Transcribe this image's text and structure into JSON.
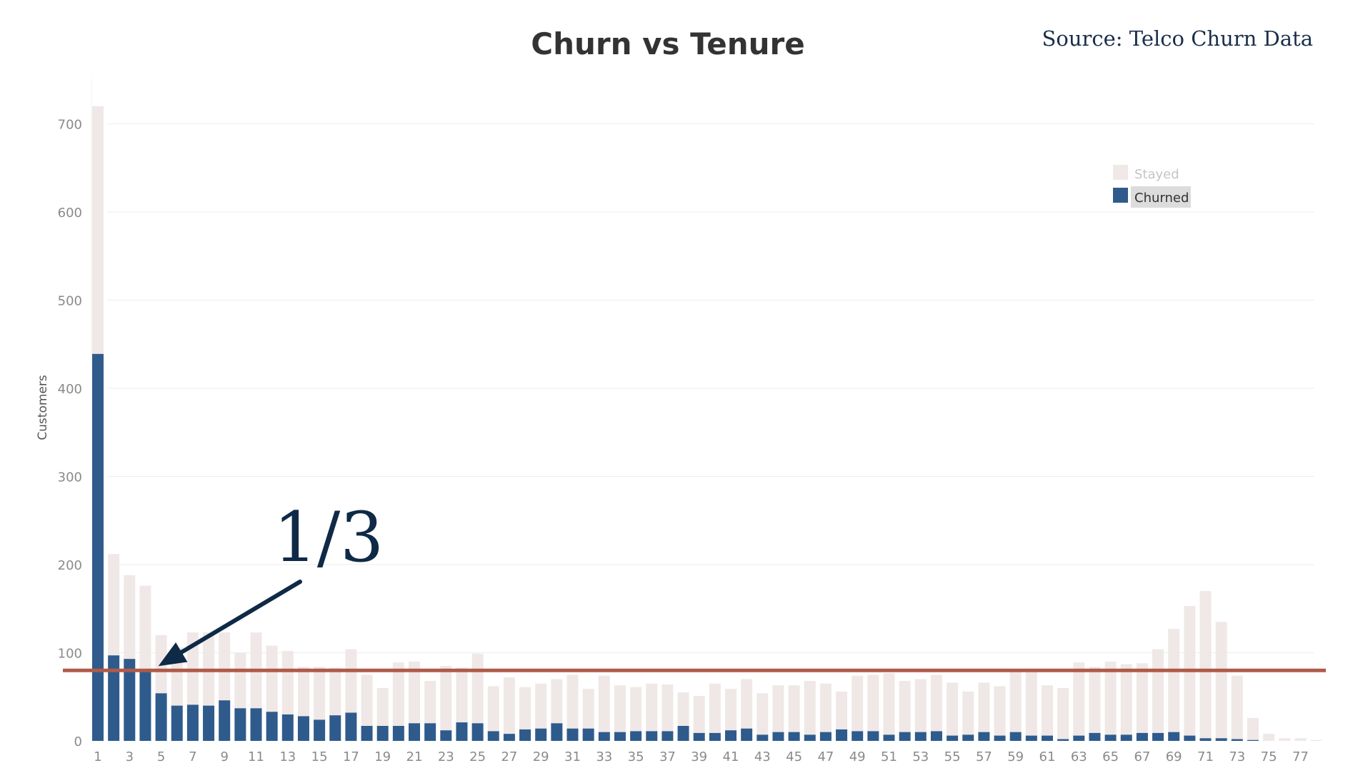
{
  "chart_data": {
    "type": "bar",
    "stacked": true,
    "title": "Churn vs Tenure",
    "source": "Source: Telco Churn Data",
    "xlabel": "",
    "ylabel": "Customers",
    "ylim": [
      0,
      720
    ],
    "yticks": [
      0,
      100,
      200,
      300,
      400,
      500,
      600,
      700
    ],
    "categories": [
      1,
      2,
      3,
      4,
      5,
      6,
      7,
      8,
      9,
      10,
      11,
      12,
      13,
      14,
      15,
      16,
      17,
      18,
      19,
      20,
      21,
      22,
      23,
      24,
      25,
      26,
      27,
      28,
      29,
      30,
      31,
      32,
      33,
      34,
      35,
      36,
      37,
      38,
      39,
      40,
      41,
      42,
      43,
      44,
      45,
      46,
      47,
      48,
      49,
      50,
      51,
      52,
      53,
      54,
      55,
      56,
      57,
      58,
      59,
      60,
      61,
      62,
      63,
      64,
      65,
      66,
      67,
      68,
      69,
      70,
      71,
      72,
      73,
      74,
      75,
      76,
      77,
      78
    ],
    "xtick_labels": [
      "1",
      "3",
      "5",
      "7",
      "9",
      "11",
      "13",
      "15",
      "17",
      "19",
      "21",
      "23",
      "25",
      "27",
      "29",
      "31",
      "33",
      "35",
      "37",
      "39",
      "41",
      "43",
      "45",
      "47",
      "49",
      "51",
      "53",
      "55",
      "57",
      "59",
      "61",
      "63",
      "65",
      "67",
      "69",
      "71",
      "73",
      "75",
      "77"
    ],
    "series": [
      {
        "name": "Churned",
        "color": "#2f5b8c",
        "values": [
          439,
          97,
          93,
          81,
          54,
          40,
          41,
          40,
          46,
          37,
          37,
          33,
          30,
          28,
          24,
          29,
          32,
          17,
          17,
          17,
          20,
          20,
          12,
          21,
          20,
          11,
          8,
          13,
          14,
          20,
          14,
          14,
          10,
          10,
          11,
          11,
          11,
          17,
          9,
          9,
          12,
          14,
          7,
          10,
          10,
          7,
          10,
          13,
          11,
          11,
          7,
          10,
          10,
          11,
          6,
          7,
          10,
          6,
          10,
          6,
          6,
          2,
          6,
          9,
          7,
          7,
          9,
          9,
          10,
          6,
          3,
          3,
          2,
          1,
          0,
          0,
          0,
          0
        ]
      },
      {
        "name": "Stayed",
        "color": "#efe8e6",
        "values": [
          281,
          115,
          95,
          95,
          66,
          66,
          82,
          83,
          77,
          63,
          86,
          75,
          72,
          56,
          60,
          54,
          72,
          58,
          43,
          72,
          70,
          48,
          73,
          62,
          79,
          51,
          64,
          48,
          51,
          50,
          61,
          45,
          64,
          53,
          50,
          54,
          53,
          38,
          42,
          56,
          47,
          56,
          47,
          53,
          53,
          61,
          55,
          43,
          63,
          64,
          70,
          58,
          60,
          64,
          60,
          49,
          56,
          56,
          69,
          72,
          57,
          58,
          83,
          75,
          83,
          80,
          79,
          95,
          117,
          147,
          167,
          132,
          72,
          25,
          8,
          3,
          3,
          1
        ]
      }
    ],
    "reference_line": {
      "value": 80,
      "color": "#b05a48"
    },
    "annotation": {
      "text": "1/3",
      "points_to_category": 5
    },
    "legend": {
      "position": "top-right",
      "items": [
        {
          "label": "Stayed",
          "color": "#efe8e6"
        },
        {
          "label": "Churned",
          "color": "#2f5b8c"
        }
      ]
    },
    "grid": true
  }
}
